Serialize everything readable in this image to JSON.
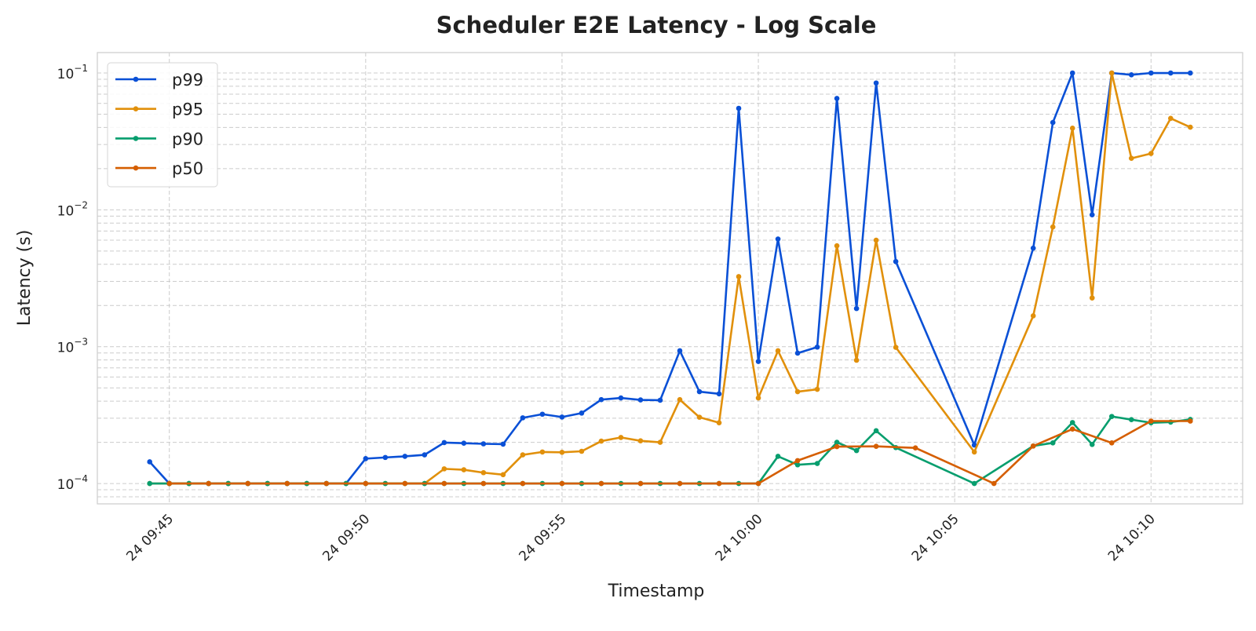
{
  "chart_data": {
    "type": "line",
    "title": "Scheduler E2E Latency - Log Scale",
    "xlabel": "Timestamp",
    "ylabel": "Latency (s)",
    "yscale": "log",
    "ylim": [
      7.1e-05,
      0.141
    ],
    "xlim": [
      "09:43:10",
      "10:12:20"
    ],
    "grid": true,
    "legend_position": "top-left",
    "x_tick_labels": [
      "24 09:45",
      "24 09:50",
      "24 09:55",
      "24 10:00",
      "24 10:05",
      "24 10:10"
    ],
    "y_tick_labels": [
      {
        "base": "10",
        "exp": "−4",
        "value": 0.0001
      },
      {
        "base": "10",
        "exp": "−3",
        "value": 0.001
      },
      {
        "base": "10",
        "exp": "−2",
        "value": 0.01
      },
      {
        "base": "10",
        "exp": "−1",
        "value": 0.1
      }
    ],
    "series": [
      {
        "name": "p99",
        "color": "#0a50d6",
        "points": [
          [
            "09:44:30",
            0.000144
          ],
          [
            "09:45:00",
            0.0001
          ],
          [
            "09:45:30",
            0.0001
          ],
          [
            "09:46:00",
            0.0001
          ],
          [
            "09:46:30",
            0.0001
          ],
          [
            "09:47:00",
            0.0001
          ],
          [
            "09:47:30",
            0.0001
          ],
          [
            "09:48:00",
            0.0001
          ],
          [
            "09:48:30",
            0.0001
          ],
          [
            "09:49:00",
            0.0001
          ],
          [
            "09:49:30",
            0.0001
          ],
          [
            "09:50:00",
            0.000152
          ],
          [
            "09:50:30",
            0.000155
          ],
          [
            "09:51:00",
            0.000158
          ],
          [
            "09:51:30",
            0.000162
          ],
          [
            "09:52:00",
            0.000199
          ],
          [
            "09:52:30",
            0.000197
          ],
          [
            "09:53:00",
            0.000195
          ],
          [
            "09:53:30",
            0.000194
          ],
          [
            "09:54:00",
            0.000302
          ],
          [
            "09:54:30",
            0.000321
          ],
          [
            "09:55:00",
            0.000306
          ],
          [
            "09:55:30",
            0.000327
          ],
          [
            "09:56:00",
            0.00041
          ],
          [
            "09:56:30",
            0.000422
          ],
          [
            "09:57:00",
            0.000408
          ],
          [
            "09:57:30",
            0.000406
          ],
          [
            "09:58:00",
            0.000933
          ],
          [
            "09:58:30",
            0.000469
          ],
          [
            "09:59:00",
            0.000452
          ],
          [
            "09:59:30",
            0.0552
          ],
          [
            "10:00:00",
            0.00078
          ],
          [
            "10:00:30",
            0.00612
          ],
          [
            "10:01:00",
            0.000897
          ],
          [
            "10:01:30",
            0.000993
          ],
          [
            "10:02:00",
            0.0652
          ],
          [
            "10:02:30",
            0.0019
          ],
          [
            "10:03:00",
            0.0845
          ],
          [
            "10:03:30",
            0.00419
          ],
          [
            "10:05:30",
            0.000191
          ],
          [
            "10:07:00",
            0.00525
          ],
          [
            "10:07:30",
            0.0435
          ],
          [
            "10:08:00",
            0.1
          ],
          [
            "10:08:30",
            0.0092
          ],
          [
            "10:09:00",
            0.1
          ],
          [
            "10:09:30",
            0.097
          ],
          [
            "10:10:00",
            0.1
          ],
          [
            "10:10:30",
            0.1
          ],
          [
            "10:11:00",
            0.1
          ]
        ]
      },
      {
        "name": "p95",
        "color": "#e1900b",
        "points": [
          [
            "09:44:30",
            0.0001
          ],
          [
            "09:45:00",
            0.0001
          ],
          [
            "09:45:30",
            0.0001
          ],
          [
            "09:46:00",
            0.0001
          ],
          [
            "09:46:30",
            0.0001
          ],
          [
            "09:47:00",
            0.0001
          ],
          [
            "09:47:30",
            0.0001
          ],
          [
            "09:48:00",
            0.0001
          ],
          [
            "09:48:30",
            0.0001
          ],
          [
            "09:49:00",
            0.0001
          ],
          [
            "09:49:30",
            0.0001
          ],
          [
            "09:50:00",
            0.0001
          ],
          [
            "09:50:30",
            0.0001
          ],
          [
            "09:51:00",
            0.0001
          ],
          [
            "09:51:30",
            0.0001
          ],
          [
            "09:52:00",
            0.000128
          ],
          [
            "09:52:30",
            0.000126
          ],
          [
            "09:53:00",
            0.00012
          ],
          [
            "09:53:30",
            0.000116
          ],
          [
            "09:54:00",
            0.000162
          ],
          [
            "09:54:30",
            0.00017
          ],
          [
            "09:55:00",
            0.000169
          ],
          [
            "09:55:30",
            0.000172
          ],
          [
            "09:56:00",
            0.000204
          ],
          [
            "09:56:30",
            0.000217
          ],
          [
            "09:57:00",
            0.000205
          ],
          [
            "09:57:30",
            0.0002
          ],
          [
            "09:58:00",
            0.00041
          ],
          [
            "09:58:30",
            0.000305
          ],
          [
            "09:59:00",
            0.000278
          ],
          [
            "09:59:30",
            0.00325
          ],
          [
            "10:00:00",
            0.000422
          ],
          [
            "10:00:30",
            0.000933
          ],
          [
            "10:01:00",
            0.000469
          ],
          [
            "10:01:30",
            0.000488
          ],
          [
            "10:02:00",
            0.00546
          ],
          [
            "10:02:30",
            0.000796
          ],
          [
            "10:03:00",
            0.006
          ],
          [
            "10:03:30",
            0.000989
          ],
          [
            "10:05:30",
            0.00017
          ],
          [
            "10:07:00",
            0.00168
          ],
          [
            "10:07:30",
            0.0075
          ],
          [
            "10:08:00",
            0.0395
          ],
          [
            "10:08:30",
            0.00227
          ],
          [
            "10:09:00",
            0.1
          ],
          [
            "10:09:30",
            0.0238
          ],
          [
            "10:10:00",
            0.0258
          ],
          [
            "10:10:30",
            0.0466
          ],
          [
            "10:11:00",
            0.0402
          ]
        ]
      },
      {
        "name": "p90",
        "color": "#079e6e",
        "points": [
          [
            "09:44:30",
            0.0001
          ],
          [
            "09:45:00",
            0.0001
          ],
          [
            "09:45:30",
            0.0001
          ],
          [
            "09:46:00",
            0.0001
          ],
          [
            "09:46:30",
            0.0001
          ],
          [
            "09:47:00",
            0.0001
          ],
          [
            "09:47:30",
            0.0001
          ],
          [
            "09:48:00",
            0.0001
          ],
          [
            "09:48:30",
            0.0001
          ],
          [
            "09:49:00",
            0.0001
          ],
          [
            "09:49:30",
            0.0001
          ],
          [
            "09:50:00",
            0.0001
          ],
          [
            "09:50:30",
            0.0001
          ],
          [
            "09:51:00",
            0.0001
          ],
          [
            "09:51:30",
            0.0001
          ],
          [
            "09:52:00",
            0.0001
          ],
          [
            "09:52:30",
            0.0001
          ],
          [
            "09:53:00",
            0.0001
          ],
          [
            "09:53:30",
            0.0001
          ],
          [
            "09:54:00",
            0.0001
          ],
          [
            "09:54:30",
            0.0001
          ],
          [
            "09:55:00",
            0.0001
          ],
          [
            "09:55:30",
            0.0001
          ],
          [
            "09:56:00",
            0.0001
          ],
          [
            "09:56:30",
            0.0001
          ],
          [
            "09:57:00",
            0.0001
          ],
          [
            "09:57:30",
            0.0001
          ],
          [
            "09:58:00",
            0.0001
          ],
          [
            "09:58:30",
            0.0001
          ],
          [
            "09:59:00",
            0.0001
          ],
          [
            "09:59:30",
            0.0001
          ],
          [
            "10:00:00",
            0.0001
          ],
          [
            "10:00:30",
            0.000158
          ],
          [
            "10:01:00",
            0.000137
          ],
          [
            "10:01:30",
            0.00014
          ],
          [
            "10:02:00",
            0.0002
          ],
          [
            "10:02:30",
            0.000174
          ],
          [
            "10:03:00",
            0.000243
          ],
          [
            "10:03:30",
            0.000183
          ],
          [
            "10:05:30",
            0.0001
          ],
          [
            "10:07:00",
            0.000188
          ],
          [
            "10:07:30",
            0.000198
          ],
          [
            "10:08:00",
            0.000279
          ],
          [
            "10:08:30",
            0.000193
          ],
          [
            "10:09:00",
            0.000309
          ],
          [
            "10:09:30",
            0.000293
          ],
          [
            "10:10:00",
            0.000278
          ],
          [
            "10:10:30",
            0.000281
          ],
          [
            "10:11:00",
            0.000294
          ]
        ]
      },
      {
        "name": "p50",
        "color": "#d55e00",
        "points": [
          [
            "09:45:00",
            0.0001
          ],
          [
            "09:46:00",
            0.0001
          ],
          [
            "09:47:00",
            0.0001
          ],
          [
            "09:48:00",
            0.0001
          ],
          [
            "09:49:00",
            0.0001
          ],
          [
            "09:50:00",
            0.0001
          ],
          [
            "09:51:00",
            0.0001
          ],
          [
            "09:52:00",
            0.0001
          ],
          [
            "09:53:00",
            0.0001
          ],
          [
            "09:54:00",
            0.0001
          ],
          [
            "09:55:00",
            0.0001
          ],
          [
            "09:56:00",
            0.0001
          ],
          [
            "09:57:00",
            0.0001
          ],
          [
            "09:58:00",
            0.0001
          ],
          [
            "09:59:00",
            0.0001
          ],
          [
            "10:00:00",
            0.0001
          ],
          [
            "10:01:00",
            0.000147
          ],
          [
            "10:02:00",
            0.000186
          ],
          [
            "10:03:00",
            0.000187
          ],
          [
            "10:04:00",
            0.000182
          ],
          [
            "10:06:00",
            0.0001
          ],
          [
            "10:07:00",
            0.000188
          ],
          [
            "10:08:00",
            0.00025
          ],
          [
            "10:09:00",
            0.000198
          ],
          [
            "10:10:00",
            0.000286
          ],
          [
            "10:11:00",
            0.000286
          ]
        ]
      }
    ]
  }
}
